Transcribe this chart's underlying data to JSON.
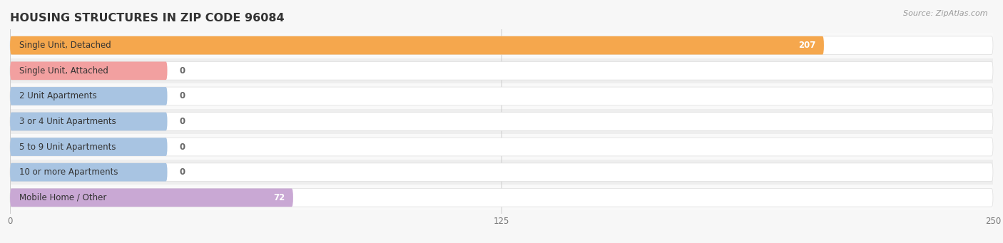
{
  "title": "HOUSING STRUCTURES IN ZIP CODE 96084",
  "source_text": "Source: ZipAtlas.com",
  "categories": [
    "Single Unit, Detached",
    "Single Unit, Attached",
    "2 Unit Apartments",
    "3 or 4 Unit Apartments",
    "5 to 9 Unit Apartments",
    "10 or more Apartments",
    "Mobile Home / Other"
  ],
  "values": [
    207,
    0,
    0,
    0,
    0,
    0,
    72
  ],
  "bar_colors": [
    "#f5a74d",
    "#f2a0a0",
    "#a8c4e2",
    "#a8c4e2",
    "#a8c4e2",
    "#a8c4e2",
    "#c9a8d4"
  ],
  "background_color": "#f7f7f7",
  "row_bg_light": "#f9f9f9",
  "row_bg_dark": "#eeeeee",
  "pill_bg_color": "#ffffff",
  "xlim": [
    0,
    250
  ],
  "xticks": [
    0,
    125,
    250
  ],
  "title_fontsize": 11.5,
  "label_fontsize": 8.5,
  "value_fontsize": 8.5,
  "source_fontsize": 8,
  "value_label_color_inside": "#ffffff",
  "value_label_color_outside": "#666666"
}
